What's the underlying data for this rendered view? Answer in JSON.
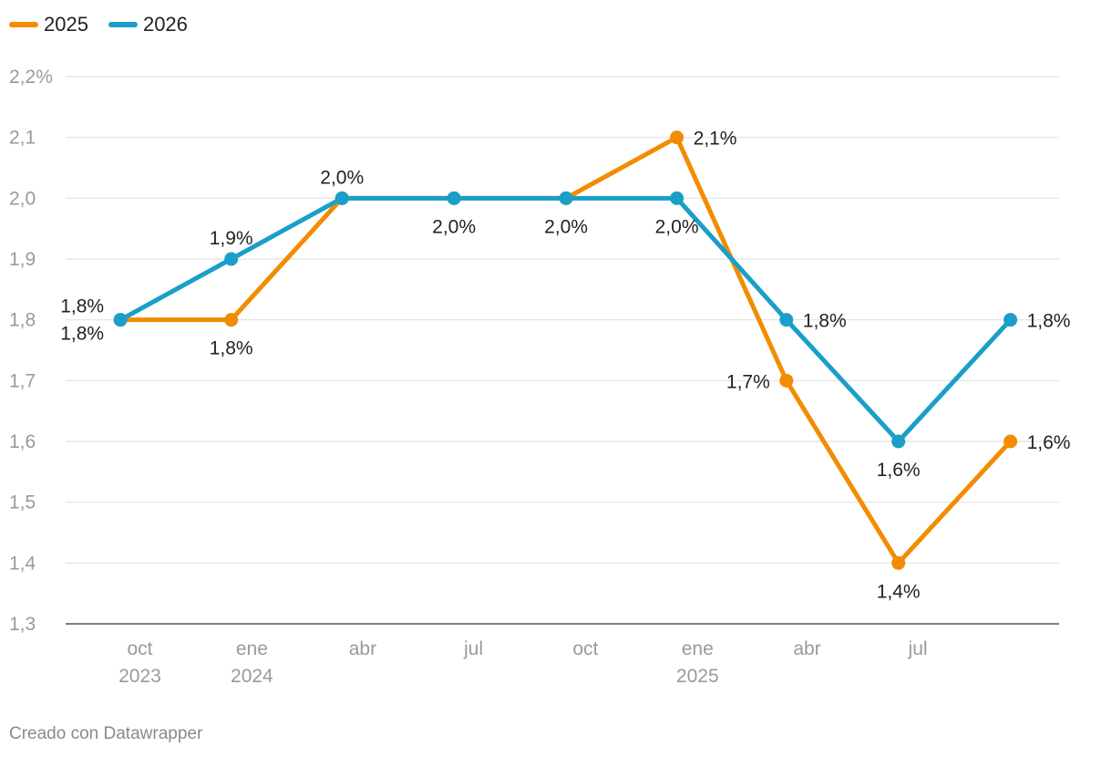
{
  "legend": [
    {
      "label": "2025",
      "color": "#f28c00"
    },
    {
      "label": "2026",
      "color": "#1a9fc8"
    }
  ],
  "footer": {
    "credit": "Creado con Datawrapper"
  },
  "chart_data": {
    "type": "line",
    "ylim": [
      1.3,
      2.2
    ],
    "y_ticks": [
      {
        "value": 2.2,
        "label": "2,2%"
      },
      {
        "value": 2.1,
        "label": "2,1"
      },
      {
        "value": 2.0,
        "label": "2,0"
      },
      {
        "value": 1.9,
        "label": "1,9"
      },
      {
        "value": 1.8,
        "label": "1,8"
      },
      {
        "value": 1.7,
        "label": "1,7"
      },
      {
        "value": 1.6,
        "label": "1,6"
      },
      {
        "value": 1.5,
        "label": "1,5"
      },
      {
        "value": 1.4,
        "label": "1,4"
      },
      {
        "value": 1.3,
        "label": "1,3"
      }
    ],
    "xlim": [
      "2023-08-01",
      "2025-10-25"
    ],
    "x_ticks": [
      {
        "date": "2023-10-01",
        "lines": [
          "oct",
          "2023"
        ]
      },
      {
        "date": "2024-01-01",
        "lines": [
          "ene",
          "2024"
        ]
      },
      {
        "date": "2024-04-01",
        "lines": [
          "abr"
        ]
      },
      {
        "date": "2024-07-01",
        "lines": [
          "jul"
        ]
      },
      {
        "date": "2024-10-01",
        "lines": [
          "oct"
        ]
      },
      {
        "date": "2025-01-01",
        "lines": [
          "ene",
          "2025"
        ]
      },
      {
        "date": "2025-04-01",
        "lines": [
          "abr"
        ]
      },
      {
        "date": "2025-07-01",
        "lines": [
          "jul"
        ]
      }
    ],
    "grid": true,
    "legend_position": "top-left",
    "series": [
      {
        "name": "2025",
        "color": "#f28c00",
        "points": [
          {
            "x": "2023-09-15",
            "y": 1.8,
            "label": "1,8%",
            "pos": "below"
          },
          {
            "x": "2023-12-15",
            "y": 1.8,
            "label": "1,8%",
            "pos": "below"
          },
          {
            "x": "2024-03-15",
            "y": 2.0,
            "label": null
          },
          {
            "x": "2024-06-15",
            "y": 2.0,
            "label": null
          },
          {
            "x": "2024-09-15",
            "y": 2.0,
            "label": null
          },
          {
            "x": "2024-12-15",
            "y": 2.1,
            "label": "2,1%",
            "pos": "right"
          },
          {
            "x": "2025-03-15",
            "y": 1.7,
            "label": "1,7%",
            "pos": "left"
          },
          {
            "x": "2025-06-15",
            "y": 1.4,
            "label": "1,4%",
            "pos": "below"
          },
          {
            "x": "2025-09-15",
            "y": 1.6,
            "label": "1,6%",
            "pos": "right"
          }
        ]
      },
      {
        "name": "2026",
        "color": "#1a9fc8",
        "points": [
          {
            "x": "2023-09-15",
            "y": 1.8,
            "label": "1,8%",
            "pos": "above"
          },
          {
            "x": "2023-12-15",
            "y": 1.9,
            "label": "1,9%",
            "pos": "above"
          },
          {
            "x": "2024-03-15",
            "y": 2.0,
            "label": "2,0%",
            "pos": "above"
          },
          {
            "x": "2024-06-15",
            "y": 2.0,
            "label": "2,0%",
            "pos": "below"
          },
          {
            "x": "2024-09-15",
            "y": 2.0,
            "label": "2,0%",
            "pos": "below"
          },
          {
            "x": "2024-12-15",
            "y": 2.0,
            "label": "2,0%",
            "pos": "below"
          },
          {
            "x": "2025-03-15",
            "y": 1.8,
            "label": "1,8%",
            "pos": "right"
          },
          {
            "x": "2025-06-15",
            "y": 1.6,
            "label": "1,6%",
            "pos": "below"
          },
          {
            "x": "2025-09-15",
            "y": 1.8,
            "label": "1,8%",
            "pos": "right"
          }
        ]
      }
    ]
  }
}
